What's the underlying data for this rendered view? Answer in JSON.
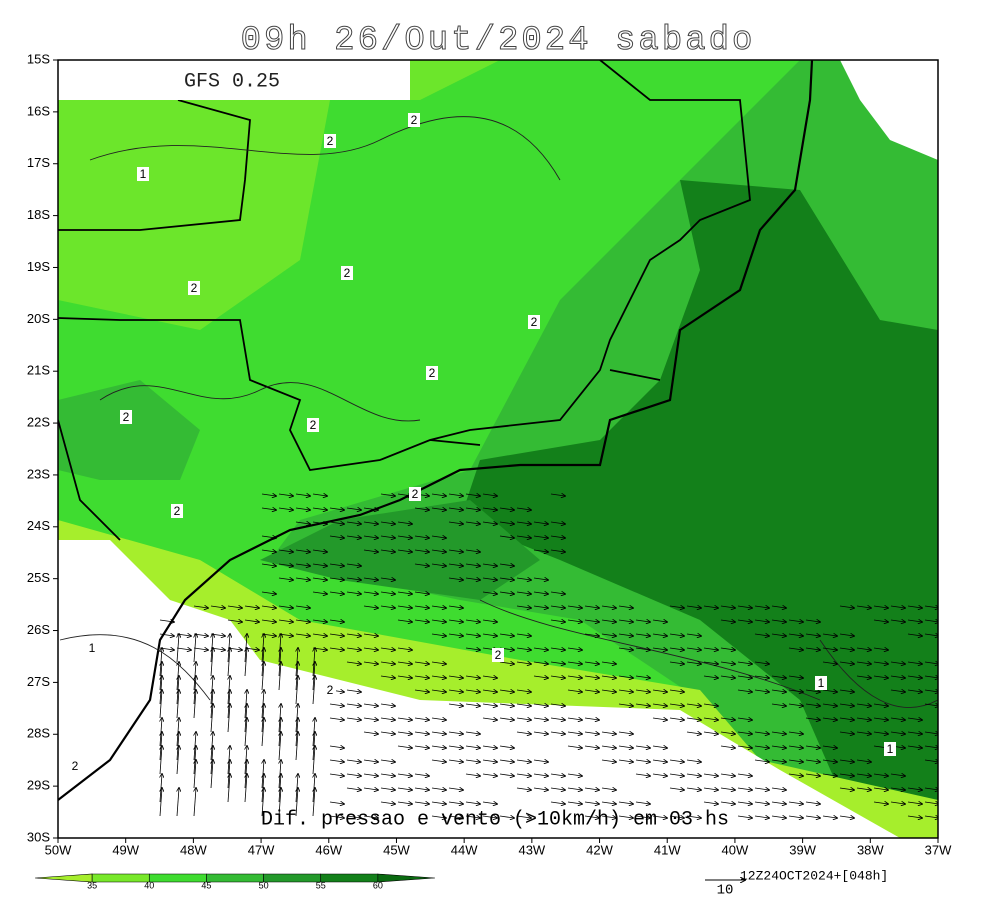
{
  "header": {
    "title": "09h 26/Out/2024 sabado",
    "model": "GFS 0.25"
  },
  "map": {
    "latitude_labels": [
      "15S",
      "16S",
      "17S",
      "18S",
      "19S",
      "20S",
      "21S",
      "22S",
      "23S",
      "24S",
      "25S",
      "26S",
      "27S",
      "28S",
      "29S",
      "30S"
    ],
    "longitude_labels": [
      "50W",
      "49W",
      "48W",
      "47W",
      "46W",
      "45W",
      "44W",
      "43W",
      "42W",
      "41W",
      "40W",
      "39W",
      "38W",
      "37W"
    ],
    "contour_labels": [
      "2",
      "2",
      "1",
      "2",
      "2",
      "2",
      "2",
      "2",
      "2",
      "2",
      "2",
      "2",
      "1",
      "1",
      "1",
      "2",
      "2"
    ],
    "caption": "Dif. pressao e vento (>10km/h) em 03 hs"
  },
  "colorbar": {
    "labels": [
      "35",
      "40",
      "45",
      "50",
      "55",
      "60"
    ],
    "colors": [
      "#a6ee2c",
      "#78e82a",
      "#3fdc30",
      "#34bb34",
      "#23992a",
      "#13801a",
      "#0a6a10"
    ]
  },
  "vector_reference": {
    "run": "12Z24OCT2024+[048h]",
    "magnitude": "10"
  }
}
